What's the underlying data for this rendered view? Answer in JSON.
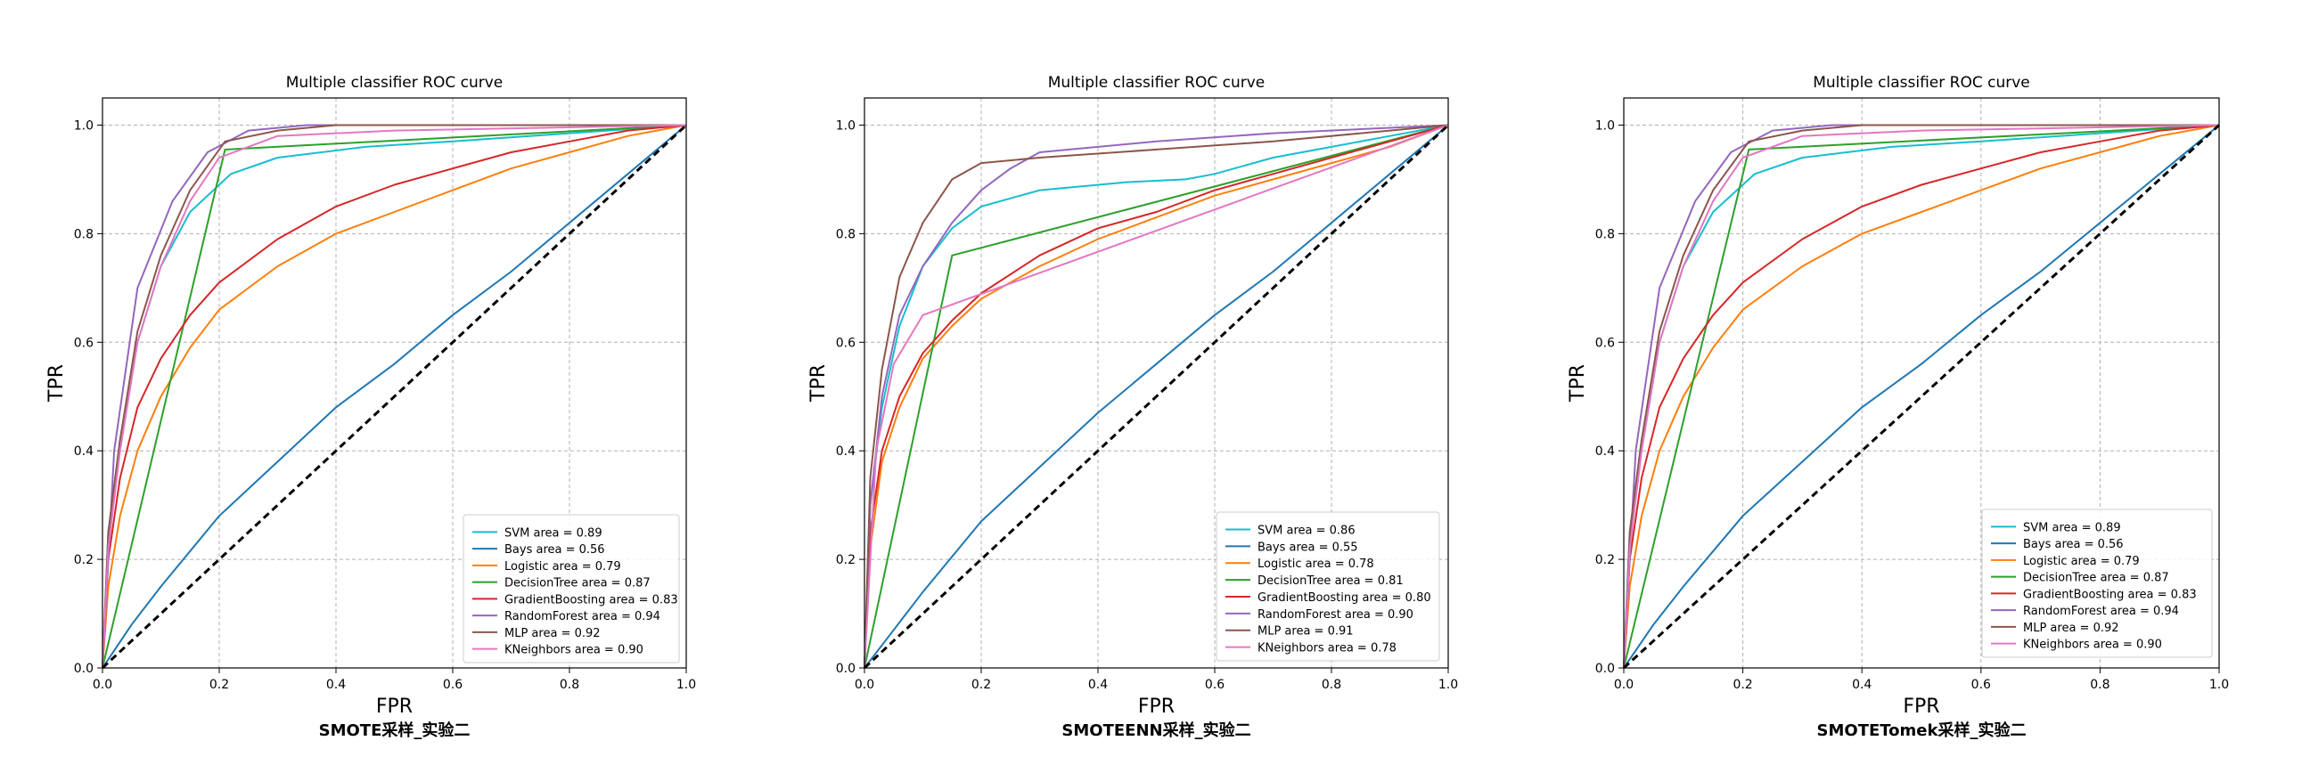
{
  "chart_data": [
    {
      "type": "line",
      "title": "Multiple classifier ROC curve",
      "xlabel": "FPR",
      "ylabel": "TPR",
      "caption": "SMOTE采样_实验二",
      "xlim": [
        0,
        1
      ],
      "ylim": [
        0,
        1.05
      ],
      "xticks": [
        "0.0",
        "0.2",
        "0.4",
        "0.6",
        "0.8",
        "1.0"
      ],
      "yticks": [
        "0.0",
        "0.2",
        "0.4",
        "0.6",
        "0.8",
        "1.0"
      ],
      "grid": true,
      "legend_position": "lower-right",
      "series": [
        {
          "name": "SVM area = 0.89",
          "color": "#17becf",
          "x": [
            0,
            0.01,
            0.03,
            0.06,
            0.1,
            0.15,
            0.22,
            0.3,
            0.45,
            0.6,
            0.8,
            1.0
          ],
          "y": [
            0,
            0.25,
            0.42,
            0.6,
            0.74,
            0.84,
            0.91,
            0.94,
            0.96,
            0.97,
            0.985,
            1.0
          ]
        },
        {
          "name": "Bays area = 0.56",
          "color": "#1f77b4",
          "x": [
            0,
            0.05,
            0.1,
            0.2,
            0.3,
            0.4,
            0.5,
            0.6,
            0.7,
            0.8,
            0.9,
            1.0
          ],
          "y": [
            0,
            0.08,
            0.15,
            0.28,
            0.38,
            0.48,
            0.56,
            0.65,
            0.73,
            0.82,
            0.91,
            1.0
          ]
        },
        {
          "name": "Logistic area = 0.79",
          "color": "#ff7f0e",
          "x": [
            0,
            0.01,
            0.03,
            0.06,
            0.1,
            0.15,
            0.2,
            0.3,
            0.4,
            0.5,
            0.6,
            0.7,
            0.8,
            0.9,
            1.0
          ],
          "y": [
            0,
            0.15,
            0.28,
            0.4,
            0.5,
            0.59,
            0.66,
            0.74,
            0.8,
            0.84,
            0.88,
            0.92,
            0.95,
            0.98,
            1.0
          ]
        },
        {
          "name": "DecisionTree area = 0.87",
          "color": "#2ca02c",
          "x": [
            0,
            0.21,
            1.0
          ],
          "y": [
            0,
            0.955,
            1.0
          ]
        },
        {
          "name": "GradientBoosting area = 0.83",
          "color": "#d62728",
          "x": [
            0,
            0.01,
            0.03,
            0.06,
            0.1,
            0.15,
            0.2,
            0.3,
            0.4,
            0.5,
            0.6,
            0.7,
            0.8,
            0.9,
            1.0
          ],
          "y": [
            0,
            0.2,
            0.35,
            0.48,
            0.57,
            0.65,
            0.71,
            0.79,
            0.85,
            0.89,
            0.92,
            0.95,
            0.97,
            0.99,
            1.0
          ]
        },
        {
          "name": "RandomForest area = 0.94",
          "color": "#9467bd",
          "x": [
            0,
            0.02,
            0.06,
            0.12,
            0.18,
            0.25,
            0.35,
            1.0
          ],
          "y": [
            0,
            0.4,
            0.7,
            0.86,
            0.95,
            0.99,
            1.0,
            1.0
          ]
        },
        {
          "name": "MLP area = 0.92",
          "color": "#8c564b",
          "x": [
            0,
            0.01,
            0.03,
            0.06,
            0.1,
            0.15,
            0.21,
            0.3,
            0.4,
            1.0
          ],
          "y": [
            0,
            0.25,
            0.42,
            0.62,
            0.76,
            0.88,
            0.97,
            0.99,
            1.0,
            1.0
          ]
        },
        {
          "name": "KNeighbors area = 0.90",
          "color": "#e377c2",
          "x": [
            0,
            0.01,
            0.03,
            0.06,
            0.1,
            0.15,
            0.2,
            0.3,
            0.5,
            1.0
          ],
          "y": [
            0,
            0.22,
            0.4,
            0.6,
            0.74,
            0.86,
            0.94,
            0.98,
            0.99,
            1.0
          ]
        },
        {
          "name": "",
          "color": "#000000",
          "dashed": true,
          "x": [
            0,
            1
          ],
          "y": [
            0,
            1
          ]
        }
      ]
    },
    {
      "type": "line",
      "title": "Multiple classifier ROC curve",
      "xlabel": "FPR",
      "ylabel": "TPR",
      "caption": "SMOTEENN采样_实验二",
      "xlim": [
        0,
        1
      ],
      "ylim": [
        0,
        1.05
      ],
      "xticks": [
        "0.0",
        "0.2",
        "0.4",
        "0.6",
        "0.8",
        "1.0"
      ],
      "yticks": [
        "0.0",
        "0.2",
        "0.4",
        "0.6",
        "0.8",
        "1.0"
      ],
      "grid": true,
      "legend_position": "lower-right",
      "series": [
        {
          "name": "SVM area = 0.86",
          "color": "#17becf",
          "x": [
            0,
            0.01,
            0.03,
            0.06,
            0.1,
            0.15,
            0.2,
            0.3,
            0.45,
            0.55,
            0.6,
            0.7,
            0.8,
            0.9,
            1.0
          ],
          "y": [
            0,
            0.3,
            0.48,
            0.63,
            0.74,
            0.81,
            0.85,
            0.88,
            0.895,
            0.9,
            0.91,
            0.94,
            0.96,
            0.98,
            1.0
          ]
        },
        {
          "name": "Bays area = 0.55",
          "color": "#1f77b4",
          "x": [
            0,
            0.05,
            0.1,
            0.2,
            0.3,
            0.4,
            0.5,
            0.6,
            0.7,
            0.8,
            0.9,
            1.0
          ],
          "y": [
            0,
            0.07,
            0.14,
            0.27,
            0.37,
            0.47,
            0.56,
            0.65,
            0.73,
            0.82,
            0.91,
            1.0
          ]
        },
        {
          "name": "Logistic area = 0.78",
          "color": "#ff7f0e",
          "x": [
            0,
            0.01,
            0.03,
            0.06,
            0.1,
            0.15,
            0.2,
            0.3,
            0.4,
            0.5,
            0.6,
            0.7,
            0.8,
            0.9,
            1.0
          ],
          "y": [
            0,
            0.22,
            0.38,
            0.48,
            0.57,
            0.63,
            0.68,
            0.74,
            0.79,
            0.83,
            0.87,
            0.9,
            0.93,
            0.96,
            1.0
          ]
        },
        {
          "name": "DecisionTree area = 0.81",
          "color": "#2ca02c",
          "x": [
            0,
            0.15,
            1.0
          ],
          "y": [
            0,
            0.76,
            1.0
          ]
        },
        {
          "name": "GradientBoosting area = 0.80",
          "color": "#d62728",
          "x": [
            0,
            0.01,
            0.03,
            0.06,
            0.1,
            0.15,
            0.2,
            0.3,
            0.4,
            0.5,
            0.6,
            0.7,
            0.8,
            0.9,
            1.0
          ],
          "y": [
            0,
            0.25,
            0.4,
            0.5,
            0.58,
            0.64,
            0.69,
            0.76,
            0.81,
            0.84,
            0.88,
            0.91,
            0.94,
            0.97,
            1.0
          ]
        },
        {
          "name": "RandomForest area = 0.90",
          "color": "#9467bd",
          "x": [
            0,
            0.01,
            0.03,
            0.06,
            0.1,
            0.15,
            0.2,
            0.25,
            0.3,
            0.5,
            0.7,
            0.9,
            1.0
          ],
          "y": [
            0,
            0.3,
            0.5,
            0.65,
            0.74,
            0.82,
            0.88,
            0.92,
            0.95,
            0.97,
            0.985,
            0.995,
            1.0
          ]
        },
        {
          "name": "MLP area = 0.91",
          "color": "#8c564b",
          "x": [
            0,
            0.01,
            0.03,
            0.06,
            0.1,
            0.15,
            0.2,
            0.3,
            0.5,
            0.7,
            0.9,
            1.0
          ],
          "y": [
            0,
            0.35,
            0.55,
            0.72,
            0.82,
            0.9,
            0.93,
            0.94,
            0.955,
            0.97,
            0.99,
            1.0
          ]
        },
        {
          "name": "KNeighbors area = 0.78",
          "color": "#e377c2",
          "x": [
            0,
            0.02,
            0.05,
            0.1,
            1.0
          ],
          "y": [
            0,
            0.4,
            0.56,
            0.65,
            1.0
          ]
        },
        {
          "name": "",
          "color": "#000000",
          "dashed": true,
          "x": [
            0,
            1
          ],
          "y": [
            0,
            1
          ]
        }
      ]
    },
    {
      "type": "line",
      "title": "Multiple classifier ROC curve",
      "xlabel": "FPR",
      "ylabel": "TPR",
      "caption": "SMOTETomek采样_实验二",
      "xlim": [
        0,
        1
      ],
      "ylim": [
        0,
        1.05
      ],
      "xticks": [
        "0.0",
        "0.2",
        "0.4",
        "0.6",
        "0.8",
        "1.0"
      ],
      "yticks": [
        "0.0",
        "0.2",
        "0.4",
        "0.6",
        "0.8",
        "1.0"
      ],
      "grid": true,
      "legend_position": "lower-right",
      "series": [
        {
          "name": "SVM area = 0.89",
          "color": "#17becf",
          "x": [
            0,
            0.01,
            0.03,
            0.06,
            0.1,
            0.15,
            0.22,
            0.3,
            0.45,
            0.6,
            0.8,
            1.0
          ],
          "y": [
            0,
            0.25,
            0.42,
            0.6,
            0.74,
            0.84,
            0.91,
            0.94,
            0.96,
            0.97,
            0.985,
            1.0
          ]
        },
        {
          "name": "Bays area = 0.56",
          "color": "#1f77b4",
          "x": [
            0,
            0.05,
            0.1,
            0.2,
            0.3,
            0.4,
            0.5,
            0.6,
            0.7,
            0.8,
            0.9,
            1.0
          ],
          "y": [
            0,
            0.08,
            0.15,
            0.28,
            0.38,
            0.48,
            0.56,
            0.65,
            0.73,
            0.82,
            0.91,
            1.0
          ]
        },
        {
          "name": "Logistic area = 0.79",
          "color": "#ff7f0e",
          "x": [
            0,
            0.01,
            0.03,
            0.06,
            0.1,
            0.15,
            0.2,
            0.3,
            0.4,
            0.5,
            0.6,
            0.7,
            0.8,
            0.9,
            1.0
          ],
          "y": [
            0,
            0.15,
            0.28,
            0.4,
            0.5,
            0.59,
            0.66,
            0.74,
            0.8,
            0.84,
            0.88,
            0.92,
            0.95,
            0.98,
            1.0
          ]
        },
        {
          "name": "DecisionTree area = 0.87",
          "color": "#2ca02c",
          "x": [
            0,
            0.21,
            1.0
          ],
          "y": [
            0,
            0.955,
            1.0
          ]
        },
        {
          "name": "GradientBoosting area = 0.83",
          "color": "#d62728",
          "x": [
            0,
            0.01,
            0.03,
            0.06,
            0.1,
            0.15,
            0.2,
            0.3,
            0.4,
            0.5,
            0.6,
            0.7,
            0.8,
            0.9,
            1.0
          ],
          "y": [
            0,
            0.2,
            0.35,
            0.48,
            0.57,
            0.65,
            0.71,
            0.79,
            0.85,
            0.89,
            0.92,
            0.95,
            0.97,
            0.99,
            1.0
          ]
        },
        {
          "name": "RandomForest area = 0.94",
          "color": "#9467bd",
          "x": [
            0,
            0.02,
            0.06,
            0.12,
            0.18,
            0.25,
            0.35,
            1.0
          ],
          "y": [
            0,
            0.4,
            0.7,
            0.86,
            0.95,
            0.99,
            1.0,
            1.0
          ]
        },
        {
          "name": " MLP area = 0.92",
          "color": "#8c564b",
          "x": [
            0,
            0.01,
            0.03,
            0.06,
            0.1,
            0.15,
            0.21,
            0.3,
            0.4,
            1.0
          ],
          "y": [
            0,
            0.25,
            0.42,
            0.62,
            0.76,
            0.88,
            0.97,
            0.99,
            1.0,
            1.0
          ]
        },
        {
          "name": "KNeighbors area = 0.90",
          "color": "#e377c2",
          "x": [
            0,
            0.01,
            0.03,
            0.06,
            0.1,
            0.15,
            0.2,
            0.3,
            0.5,
            1.0
          ],
          "y": [
            0,
            0.22,
            0.4,
            0.6,
            0.74,
            0.86,
            0.94,
            0.98,
            0.99,
            1.0
          ]
        },
        {
          "name": "",
          "color": "#000000",
          "dashed": true,
          "x": [
            0,
            1
          ],
          "y": [
            0,
            1
          ]
        }
      ]
    }
  ]
}
